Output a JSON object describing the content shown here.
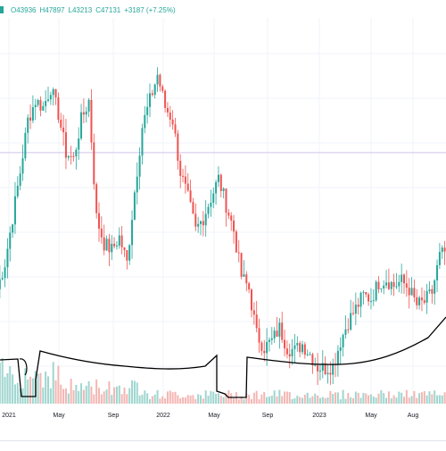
{
  "legend": {
    "open": "O43936",
    "high": "H47897",
    "low": "L43213",
    "close": "C47131",
    "change": "+3187 (+7.25%)"
  },
  "colors": {
    "up": "#26a69a",
    "down": "#ef5350",
    "vol_up": "#9fd6cf",
    "vol_down": "#f4b6b3",
    "grid": "#f0f3fa",
    "price_line": "#d1c4e9",
    "hand_drawn": "#000000",
    "axis_text": "#131722"
  },
  "chart_data": {
    "type": "candlestick",
    "x_ticks": [
      "2021",
      "May",
      "Sep",
      "2022",
      "May",
      "Sep",
      "2023",
      "May",
      "Aug"
    ],
    "x_period": [
      "2021-01",
      "2023-10"
    ],
    "y_range_visible": [
      24000,
      68000
    ],
    "horizontal_line_price": 50000,
    "price_path": [
      {
        "t": 0,
        "p": 29000
      },
      {
        "t": 3,
        "p": 33000
      },
      {
        "t": 6,
        "p": 40000
      },
      {
        "t": 9,
        "p": 47000
      },
      {
        "t": 12,
        "p": 55000
      },
      {
        "t": 15,
        "p": 58000
      },
      {
        "t": 18,
        "p": 57000
      },
      {
        "t": 21,
        "p": 60000
      },
      {
        "t": 24,
        "p": 56000
      },
      {
        "t": 27,
        "p": 50000
      },
      {
        "t": 30,
        "p": 49000
      },
      {
        "t": 33,
        "p": 55000
      },
      {
        "t": 36,
        "p": 58000
      },
      {
        "t": 39,
        "p": 40000
      },
      {
        "t": 42,
        "p": 36000
      },
      {
        "t": 45,
        "p": 35000
      },
      {
        "t": 48,
        "p": 37000
      },
      {
        "t": 51,
        "p": 33000
      },
      {
        "t": 54,
        "p": 44000
      },
      {
        "t": 57,
        "p": 54000
      },
      {
        "t": 60,
        "p": 58000
      },
      {
        "t": 63,
        "p": 62000
      },
      {
        "t": 66,
        "p": 57000
      },
      {
        "t": 69,
        "p": 55000
      },
      {
        "t": 72,
        "p": 47000
      },
      {
        "t": 75,
        "p": 43000
      },
      {
        "t": 78,
        "p": 38000
      },
      {
        "t": 81,
        "p": 40000
      },
      {
        "t": 84,
        "p": 43000
      },
      {
        "t": 87,
        "p": 46000
      },
      {
        "t": 90,
        "p": 42000
      },
      {
        "t": 93,
        "p": 38000
      },
      {
        "t": 96,
        "p": 31000
      },
      {
        "t": 99,
        "p": 29000
      },
      {
        "t": 102,
        "p": 22000
      },
      {
        "t": 105,
        "p": 20000
      },
      {
        "t": 108,
        "p": 21000
      },
      {
        "t": 111,
        "p": 23000
      },
      {
        "t": 114,
        "p": 20000
      },
      {
        "t": 117,
        "p": 19500
      },
      {
        "t": 120,
        "p": 20500
      },
      {
        "t": 123,
        "p": 19000
      },
      {
        "t": 126,
        "p": 17000
      },
      {
        "t": 129,
        "p": 16800
      },
      {
        "t": 132,
        "p": 17200
      },
      {
        "t": 135,
        "p": 21000
      },
      {
        "t": 138,
        "p": 24000
      },
      {
        "t": 141,
        "p": 26000
      },
      {
        "t": 144,
        "p": 28000
      },
      {
        "t": 147,
        "p": 27500
      },
      {
        "t": 150,
        "p": 30000
      },
      {
        "t": 153,
        "p": 30500
      },
      {
        "t": 156,
        "p": 29500
      },
      {
        "t": 159,
        "p": 30200
      },
      {
        "t": 162,
        "p": 29000
      },
      {
        "t": 165,
        "p": 26500
      },
      {
        "t": 168,
        "p": 27000
      },
      {
        "t": 171,
        "p": 28500
      },
      {
        "t": 174,
        "p": 34000
      },
      {
        "t": 177,
        "p": 35000
      }
    ]
  }
}
